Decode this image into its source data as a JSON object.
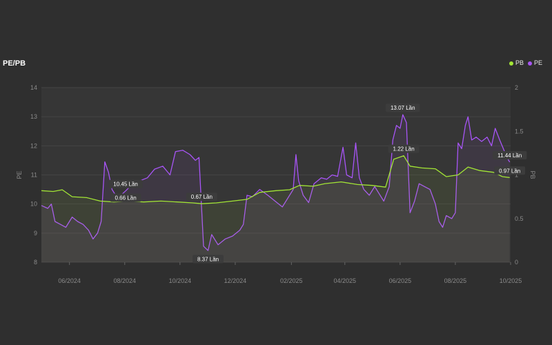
{
  "header": {
    "title": "PE/PB"
  },
  "legend": [
    {
      "name": "PB",
      "color": "#a3e635"
    },
    {
      "name": "PE",
      "color": "#a855f7"
    }
  ],
  "chart_data": {
    "type": "line",
    "x_ticks": [
      "06/2024",
      "08/2024",
      "10/2024",
      "12/2024",
      "02/2025",
      "04/2025",
      "06/2025",
      "08/2025",
      "10/2025"
    ],
    "x_range": [
      "2024-05-01",
      "2025-10-01"
    ],
    "y_left": {
      "label": "PE",
      "range": [
        8,
        14
      ],
      "ticks": [
        "8",
        "9",
        "10",
        "11",
        "12",
        "13",
        "14"
      ]
    },
    "y_right": {
      "label": "PB",
      "range": [
        0,
        2
      ],
      "ticks": [
        "0",
        "0.5",
        "1",
        "1.5",
        "2"
      ]
    },
    "grid": true,
    "legend_position": "top-right",
    "series": [
      {
        "name": "PE",
        "axis": "left",
        "color": "#a855f7",
        "points": [
          [
            "2024-05-01",
            9.95
          ],
          [
            "2024-05-08",
            9.85
          ],
          [
            "2024-05-12",
            10.0
          ],
          [
            "2024-05-16",
            9.4
          ],
          [
            "2024-05-22",
            9.3
          ],
          [
            "2024-05-28",
            9.2
          ],
          [
            "2024-06-04",
            9.55
          ],
          [
            "2024-06-10",
            9.4
          ],
          [
            "2024-06-16",
            9.3
          ],
          [
            "2024-06-22",
            9.1
          ],
          [
            "2024-06-27",
            8.8
          ],
          [
            "2024-07-02",
            9.0
          ],
          [
            "2024-07-06",
            9.4
          ],
          [
            "2024-07-10",
            11.45
          ],
          [
            "2024-07-14",
            11.1
          ],
          [
            "2024-07-18",
            10.5
          ],
          [
            "2024-07-24",
            10.2
          ],
          [
            "2024-08-02",
            10.45
          ],
          [
            "2024-08-10",
            10.7
          ],
          [
            "2024-08-18",
            10.8
          ],
          [
            "2024-08-26",
            10.9
          ],
          [
            "2024-09-03",
            11.2
          ],
          [
            "2024-09-12",
            11.3
          ],
          [
            "2024-09-20",
            11.0
          ],
          [
            "2024-09-26",
            11.8
          ],
          [
            "2024-10-04",
            11.85
          ],
          [
            "2024-10-12",
            11.7
          ],
          [
            "2024-10-18",
            11.5
          ],
          [
            "2024-10-22",
            11.6
          ],
          [
            "2024-10-27",
            8.55
          ],
          [
            "2024-11-01",
            8.4
          ],
          [
            "2024-11-05",
            8.95
          ],
          [
            "2024-11-12",
            8.6
          ],
          [
            "2024-11-20",
            8.8
          ],
          [
            "2024-11-28",
            8.9
          ],
          [
            "2024-12-06",
            9.1
          ],
          [
            "2024-12-10",
            9.3
          ],
          [
            "2024-12-14",
            10.3
          ],
          [
            "2024-12-20",
            10.25
          ],
          [
            "2024-12-28",
            10.5
          ],
          [
            "2025-01-06",
            10.3
          ],
          [
            "2025-01-14",
            10.1
          ],
          [
            "2025-01-22",
            9.9
          ],
          [
            "2025-01-28",
            10.2
          ],
          [
            "2025-02-03",
            10.5
          ],
          [
            "2025-02-06",
            11.7
          ],
          [
            "2025-02-09",
            10.8
          ],
          [
            "2025-02-14",
            10.3
          ],
          [
            "2025-02-20",
            10.05
          ],
          [
            "2025-02-26",
            10.7
          ],
          [
            "2025-03-06",
            10.9
          ],
          [
            "2025-03-12",
            10.85
          ],
          [
            "2025-03-18",
            11.0
          ],
          [
            "2025-03-24",
            10.95
          ],
          [
            "2025-03-30",
            11.95
          ],
          [
            "2025-04-03",
            11.0
          ],
          [
            "2025-04-09",
            10.9
          ],
          [
            "2025-04-13",
            12.1
          ],
          [
            "2025-04-17",
            10.9
          ],
          [
            "2025-04-22",
            10.5
          ],
          [
            "2025-04-28",
            10.3
          ],
          [
            "2025-05-04",
            10.6
          ],
          [
            "2025-05-08",
            10.4
          ],
          [
            "2025-05-14",
            10.1
          ],
          [
            "2025-05-20",
            10.6
          ],
          [
            "2025-05-24",
            12.2
          ],
          [
            "2025-05-28",
            12.7
          ],
          [
            "2025-06-01",
            12.6
          ],
          [
            "2025-06-04",
            13.07
          ],
          [
            "2025-06-08",
            12.8
          ],
          [
            "2025-06-12",
            9.7
          ],
          [
            "2025-06-17",
            10.1
          ],
          [
            "2025-06-22",
            10.7
          ],
          [
            "2025-06-28",
            10.6
          ],
          [
            "2025-07-04",
            10.5
          ],
          [
            "2025-07-10",
            10.0
          ],
          [
            "2025-07-14",
            9.4
          ],
          [
            "2025-07-18",
            9.2
          ],
          [
            "2025-07-22",
            9.6
          ],
          [
            "2025-07-28",
            9.5
          ],
          [
            "2025-08-01",
            9.7
          ],
          [
            "2025-08-04",
            12.1
          ],
          [
            "2025-08-08",
            11.9
          ],
          [
            "2025-08-12",
            12.7
          ],
          [
            "2025-08-15",
            13.0
          ],
          [
            "2025-08-19",
            12.2
          ],
          [
            "2025-08-24",
            12.3
          ],
          [
            "2025-08-30",
            12.15
          ],
          [
            "2025-09-05",
            12.3
          ],
          [
            "2025-09-10",
            12.0
          ],
          [
            "2025-09-14",
            12.6
          ],
          [
            "2025-09-19",
            12.2
          ],
          [
            "2025-09-23",
            11.9
          ],
          [
            "2025-09-27",
            11.6
          ],
          [
            "2025-09-30",
            11.44
          ]
        ]
      },
      {
        "name": "PB",
        "axis": "right",
        "color": "#a3e635",
        "points": [
          [
            "2024-05-01",
            0.82
          ],
          [
            "2024-05-14",
            0.81
          ],
          [
            "2024-05-24",
            0.83
          ],
          [
            "2024-06-04",
            0.75
          ],
          [
            "2024-06-20",
            0.74
          ],
          [
            "2024-07-05",
            0.7
          ],
          [
            "2024-07-20",
            0.69
          ],
          [
            "2024-08-05",
            0.7
          ],
          [
            "2024-08-22",
            0.69
          ],
          [
            "2024-09-10",
            0.7
          ],
          [
            "2024-09-28",
            0.69
          ],
          [
            "2024-10-15",
            0.68
          ],
          [
            "2024-10-25",
            0.67
          ],
          [
            "2024-11-10",
            0.68
          ],
          [
            "2024-11-28",
            0.7
          ],
          [
            "2024-12-14",
            0.72
          ],
          [
            "2024-12-28",
            0.8
          ],
          [
            "2025-01-15",
            0.82
          ],
          [
            "2025-01-30",
            0.83
          ],
          [
            "2025-02-10",
            0.88
          ],
          [
            "2025-02-25",
            0.87
          ],
          [
            "2025-03-10",
            0.9
          ],
          [
            "2025-03-28",
            0.92
          ],
          [
            "2025-04-15",
            0.89
          ],
          [
            "2025-05-01",
            0.88
          ],
          [
            "2025-05-16",
            0.86
          ],
          [
            "2025-05-25",
            1.18
          ],
          [
            "2025-06-05",
            1.22
          ],
          [
            "2025-06-12",
            1.1
          ],
          [
            "2025-06-25",
            1.08
          ],
          [
            "2025-07-10",
            1.07
          ],
          [
            "2025-07-22",
            0.98
          ],
          [
            "2025-08-04",
            1.0
          ],
          [
            "2025-08-15",
            1.09
          ],
          [
            "2025-08-28",
            1.05
          ],
          [
            "2025-09-12",
            1.03
          ],
          [
            "2025-09-22",
            0.98
          ],
          [
            "2025-09-30",
            0.97
          ]
        ]
      }
    ],
    "annotations": [
      {
        "text": "10.45 Lần",
        "series": "PE",
        "x": "2024-08-02",
        "y": 10.45
      },
      {
        "text": "0.66 Lần",
        "series": "PB",
        "x": "2024-08-02",
        "y": 0.66
      },
      {
        "text": "0.67 Lần",
        "series": "PB",
        "x": "2024-10-25",
        "y": 0.67
      },
      {
        "text": "8.37 Lần",
        "series": "PE",
        "x": "2024-11-01",
        "y": 8.37
      },
      {
        "text": "13.07 Lần",
        "series": "PE",
        "x": "2025-06-04",
        "y": 13.07
      },
      {
        "text": "1.22 Lần",
        "series": "PB",
        "x": "2025-06-05",
        "y": 1.22
      },
      {
        "text": "11.44 Lần",
        "series": "PE",
        "x": "2025-09-30",
        "y": 11.44
      },
      {
        "text": "0.97 Lần",
        "series": "PB",
        "x": "2025-09-30",
        "y": 0.97
      }
    ]
  }
}
